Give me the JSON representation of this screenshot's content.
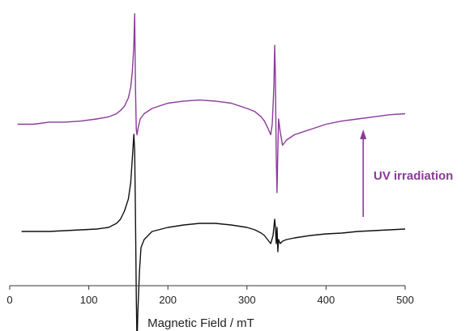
{
  "chart_data": {
    "type": "line",
    "title": "",
    "xlabel": "Magnetic Field / mT",
    "ylabel": "",
    "xlim": [
      0,
      500
    ],
    "x_ticks": [
      0,
      100,
      200,
      300,
      400,
      500
    ],
    "grid": false,
    "legend": "none",
    "annotations": [
      {
        "text": "UV irradiation",
        "color": "#8b3a9a",
        "arrow": "up",
        "x": 447
      }
    ],
    "series": [
      {
        "color": "#8b3a9a",
        "x": [
          10,
          30,
          50,
          70,
          90,
          110,
          125,
          135,
          140,
          145,
          150,
          153,
          155,
          157,
          158,
          159,
          160,
          161,
          162,
          165,
          170,
          180,
          200,
          220,
          240,
          260,
          280,
          300,
          310,
          318,
          322,
          326,
          330,
          332,
          334,
          335,
          336,
          337,
          338,
          339,
          340,
          342,
          345,
          350,
          360,
          380,
          400,
          420,
          440,
          460,
          480,
          500
        ],
        "y": [
          -0.05,
          -0.05,
          -0.03,
          -0.03,
          -0.02,
          0,
          0.02,
          0.05,
          0.08,
          0.12,
          0.2,
          0.3,
          0.45,
          0.7,
          1.0,
          0.3,
          -0.1,
          -0.15,
          -0.1,
          0,
          0.05,
          0.1,
          0.15,
          0.17,
          0.18,
          0.17,
          0.15,
          0.1,
          0.07,
          0.02,
          -0.02,
          -0.08,
          -0.15,
          -0.05,
          0.3,
          0.7,
          0.4,
          -0.35,
          -0.7,
          -0.3,
          0.0,
          -0.12,
          -0.25,
          -0.2,
          -0.15,
          -0.1,
          -0.05,
          -0.02,
          0,
          0.02,
          0.04,
          0.05
        ]
      },
      {
        "color": "#111111",
        "x": [
          15,
          30,
          50,
          70,
          90,
          110,
          125,
          135,
          140,
          145,
          150,
          153,
          155,
          157,
          158,
          159,
          160,
          161,
          162,
          164,
          166,
          170,
          180,
          200,
          220,
          240,
          260,
          280,
          300,
          310,
          318,
          322,
          326,
          330,
          333,
          335,
          336,
          337,
          338,
          339,
          340,
          342,
          345,
          350,
          360,
          380,
          400,
          420,
          440,
          460,
          480,
          500
        ],
        "y": [
          0,
          0,
          0,
          0.01,
          0.02,
          0.03,
          0.05,
          0.1,
          0.15,
          0.25,
          0.4,
          0.6,
          0.9,
          1.2,
          1.0,
          0.2,
          -0.8,
          -1.4,
          -1.0,
          -0.5,
          -0.2,
          -0.1,
          0,
          0.05,
          0.08,
          0.1,
          0.1,
          0.08,
          0.05,
          0.02,
          -0.02,
          -0.05,
          -0.1,
          -0.15,
          -0.05,
          0.15,
          0.05,
          -0.15,
          0.05,
          -0.25,
          -0.1,
          -0.15,
          -0.12,
          -0.1,
          -0.08,
          -0.05,
          -0.03,
          -0.02,
          0,
          0.01,
          0.02,
          0.03
        ]
      }
    ]
  }
}
